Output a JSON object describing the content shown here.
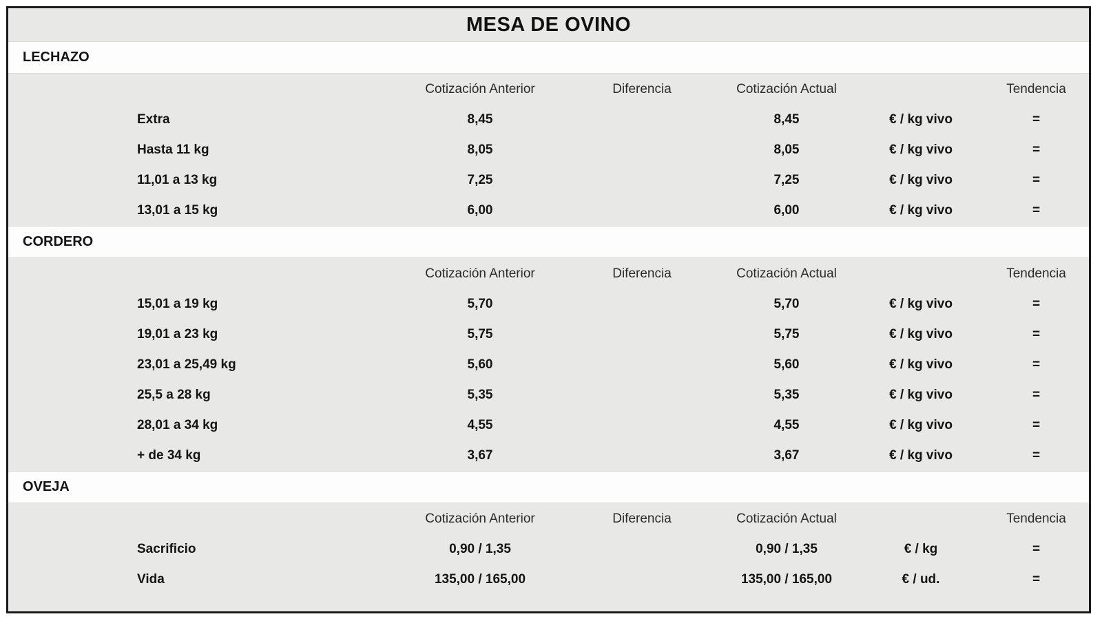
{
  "title": "MESA DE OVINO",
  "columns": {
    "anterior": "Cotización Anterior",
    "diferencia": "Diferencia",
    "actual": "Cotización Actual",
    "tendencia": "Tendencia"
  },
  "sections": [
    {
      "name": "LECHAZO",
      "rows": [
        {
          "label": "Extra",
          "anterior": "8,45",
          "diferencia": "",
          "actual": "8,45",
          "unit": "€ / kg vivo",
          "trend": "="
        },
        {
          "label": "Hasta 11 kg",
          "anterior": "8,05",
          "diferencia": "",
          "actual": "8,05",
          "unit": "€ / kg vivo",
          "trend": "="
        },
        {
          "label": "11,01 a 13 kg",
          "anterior": "7,25",
          "diferencia": "",
          "actual": "7,25",
          "unit": "€ / kg vivo",
          "trend": "="
        },
        {
          "label": "13,01 a 15 kg",
          "anterior": "6,00",
          "diferencia": "",
          "actual": "6,00",
          "unit": "€ / kg vivo",
          "trend": "="
        }
      ]
    },
    {
      "name": "CORDERO",
      "rows": [
        {
          "label": "15,01 a 19 kg",
          "anterior": "5,70",
          "diferencia": "",
          "actual": "5,70",
          "unit": "€ / kg vivo",
          "trend": "="
        },
        {
          "label": "19,01 a 23 kg",
          "anterior": "5,75",
          "diferencia": "",
          "actual": "5,75",
          "unit": "€ / kg vivo",
          "trend": "="
        },
        {
          "label": "23,01 a 25,49 kg",
          "anterior": "5,60",
          "diferencia": "",
          "actual": "5,60",
          "unit": "€ / kg vivo",
          "trend": "="
        },
        {
          "label": "25,5 a 28 kg",
          "anterior": "5,35",
          "diferencia": "",
          "actual": "5,35",
          "unit": "€ / kg vivo",
          "trend": "="
        },
        {
          "label": "28,01 a 34 kg",
          "anterior": "4,55",
          "diferencia": "",
          "actual": "4,55",
          "unit": "€ / kg vivo",
          "trend": "="
        },
        {
          "label": "+ de 34 kg",
          "anterior": "3,67",
          "diferencia": "",
          "actual": "3,67",
          "unit": "€ / kg vivo",
          "trend": "="
        }
      ]
    },
    {
      "name": "OVEJA",
      "rows": [
        {
          "label": "Sacrificio",
          "anterior": "0,90 / 1,35",
          "diferencia": "",
          "actual": "0,90 / 1,35",
          "unit": "€ / kg",
          "trend": "="
        },
        {
          "label": "Vida",
          "anterior": "135,00 / 165,00",
          "diferencia": "",
          "actual": "135,00 / 165,00",
          "unit": "€ / ud.",
          "trend": "="
        }
      ]
    }
  ],
  "colors": {
    "block_gray": "#e8e8e6",
    "row_white": "#fdfdfd",
    "frame_black": "#1b1b1b",
    "text_black": "#141414",
    "header_gray": "#2b2b2b"
  }
}
